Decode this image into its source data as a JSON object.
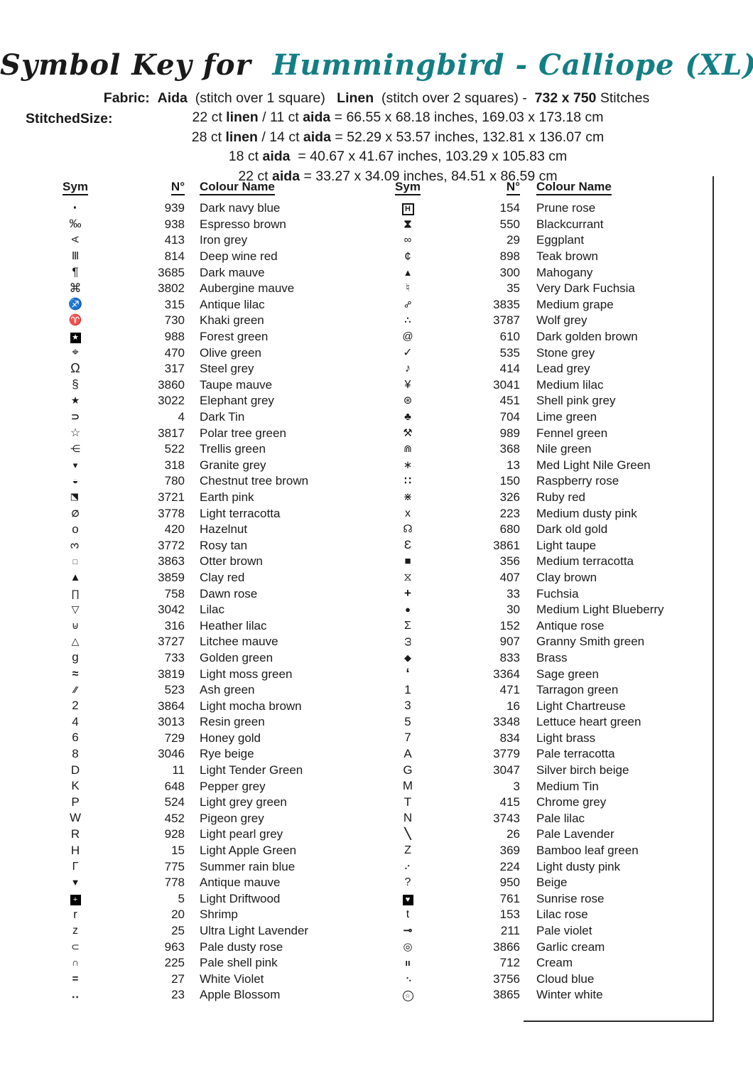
{
  "title": {
    "prefix": "Symbol Key for  ",
    "name": "Hummingbird - Calliope (XL)",
    "accent_color": "#137e83"
  },
  "fabric_line": [
    [
      "Fabric:",
      1
    ],
    [
      "  ",
      0
    ],
    [
      "Aida",
      1
    ],
    [
      "  (stitch over 1 square)   ",
      0
    ],
    [
      "Linen",
      1
    ],
    [
      "  (stitch over 2 squares) -  ",
      0
    ],
    [
      "732 x 750",
      1
    ],
    [
      " Stitches",
      0
    ]
  ],
  "stitched": {
    "label": "StitchedSize:",
    "lines": [
      [
        [
          "22 ct ",
          0
        ],
        [
          "linen",
          1
        ],
        [
          " / 11 ct ",
          0
        ],
        [
          "aida",
          1
        ],
        [
          " = 66.55 x 68.18 inches, 169.03 x 173.18 cm",
          0
        ]
      ],
      [
        [
          "28 ct ",
          0
        ],
        [
          "linen",
          1
        ],
        [
          " / 14 ct ",
          0
        ],
        [
          "aida",
          1
        ],
        [
          " = 52.29 x 53.57 inches, 132.81 x 136.07 cm",
          0
        ]
      ],
      [
        [
          "18 ct ",
          0
        ],
        [
          "aida",
          1
        ],
        [
          "  = 40.67 x 41.67 inches, 103.29 x 105.83 cm",
          0
        ]
      ],
      [
        [
          "22 ct ",
          0
        ],
        [
          "aida",
          1
        ],
        [
          " = 33.27 x 34.09 inches, 84.51 x 86.59 cm",
          0
        ]
      ]
    ]
  },
  "tables": [
    {
      "headers": {
        "sym": "Sym",
        "num": "N°",
        "name": "Colour Name"
      },
      "rows": [
        {
          "sym": "·",
          "b": 1,
          "size": 20,
          "num": "939",
          "name": "Dark navy blue"
        },
        {
          "sym": "‰",
          "size": 17,
          "num": "938",
          "name": "Espresso brown"
        },
        {
          "sym": "A",
          "rot": -90,
          "size": 14,
          "num": "413",
          "name": "Iron grey"
        },
        {
          "sym": "Ⅲ",
          "size": 15,
          "num": "814",
          "name": "Deep wine red"
        },
        {
          "sym": "¶",
          "size": 17,
          "num": "3685",
          "name": "Dark mauve"
        },
        {
          "sym": "⌘",
          "size": 17,
          "num": "3802",
          "name": "Aubergine mauve"
        },
        {
          "sym": "♐",
          "size": 16,
          "num": "315",
          "name": "Antique lilac"
        },
        {
          "sym": "♈",
          "size": 15,
          "num": "730",
          "name": "Khaki green"
        },
        {
          "sym": "★",
          "inv": 1,
          "num": "988",
          "name": "Forest green"
        },
        {
          "sym": "⌖",
          "size": 17,
          "num": "470",
          "name": "Olive green"
        },
        {
          "sym": "Ω",
          "size": 18,
          "num": "317",
          "name": "Steel grey"
        },
        {
          "sym": "§",
          "size": 17,
          "num": "3860",
          "name": "Taupe mauve"
        },
        {
          "sym": "★",
          "size": 14,
          "num": "3022",
          "name": "Elephant grey"
        },
        {
          "sym": "⊃",
          "size": 14,
          "b": 1,
          "num": "4",
          "name": "Dark Tin"
        },
        {
          "sym": "☆",
          "size": 16,
          "num": "3817",
          "name": "Polar tree green"
        },
        {
          "sym": "⋲",
          "size": 14,
          "num": "522",
          "name": "Trellis green"
        },
        {
          "sym": "▾",
          "size": 13,
          "num": "318",
          "name": "Granite grey"
        },
        {
          "sym": "◒",
          "size": 14,
          "num": "780",
          "name": "Chestnut tree brown"
        },
        {
          "sym": "◩",
          "rot": 90,
          "size": 13,
          "num": "3721",
          "name": "Earth pink"
        },
        {
          "sym": "∅",
          "size": 13,
          "b": 1,
          "num": "3778",
          "name": "Light terracotta"
        },
        {
          "sym": "o",
          "size": 17,
          "num": "420",
          "name": "Hazelnut"
        },
        {
          "sym": "3",
          "rot": -90,
          "size": 16,
          "num": "3772",
          "name": "Rosy tan"
        },
        {
          "sym": "□",
          "size": 11,
          "num": "3863",
          "name": "Otter brown"
        },
        {
          "sym": "▲",
          "size": 15,
          "num": "3859",
          "name": "Clay red"
        },
        {
          "sym": "∏",
          "size": 14,
          "num": "758",
          "name": "Dawn rose"
        },
        {
          "sym": "▽",
          "size": 14,
          "num": "3042",
          "name": "Lilac"
        },
        {
          "sym": "⊎",
          "size": 14,
          "num": "316",
          "name": "Heather lilac"
        },
        {
          "sym": "△",
          "size": 14,
          "num": "3727",
          "name": "Litchee mauve"
        },
        {
          "sym": "g",
          "size": 17,
          "num": "733",
          "name": "Golden green"
        },
        {
          "sym": "≈",
          "size": 16,
          "b": 1,
          "num": "3819",
          "name": "Light moss green"
        },
        {
          "sym": "∕∕",
          "size": 13,
          "b": 1,
          "num": "523",
          "name": "Ash green"
        },
        {
          "sym": "2",
          "size": 17,
          "num": "3864",
          "name": "Light mocha brown"
        },
        {
          "sym": "4",
          "size": 17,
          "num": "3013",
          "name": "Resin green"
        },
        {
          "sym": "6",
          "size": 17,
          "num": "729",
          "name": "Honey gold"
        },
        {
          "sym": "8",
          "size": 17,
          "num": "3046",
          "name": "Rye beige"
        },
        {
          "sym": "D",
          "size": 17,
          "num": "11",
          "name": "Light Tender Green"
        },
        {
          "sym": "K",
          "size": 17,
          "num": "648",
          "name": "Pepper grey"
        },
        {
          "sym": "P",
          "size": 17,
          "num": "524",
          "name": "Light grey green"
        },
        {
          "sym": "W",
          "size": 17,
          "num": "452",
          "name": "Pigeon grey"
        },
        {
          "sym": "R",
          "size": 17,
          "num": "928",
          "name": "Light pearl grey"
        },
        {
          "sym": "H",
          "size": 17,
          "num": "15",
          "name": "Light Apple Green"
        },
        {
          "sym": "Γ",
          "size": 16,
          "num": "775",
          "name": "Summer rain blue"
        },
        {
          "sym": "▼",
          "size": 13,
          "num": "778",
          "name": "Antique mauve"
        },
        {
          "sym": "+",
          "inv": 1,
          "num": "5",
          "name": "Light Driftwood"
        },
        {
          "sym": "r",
          "size": 17,
          "num": "20",
          "name": "Shrimp"
        },
        {
          "sym": "z",
          "size": 16,
          "num": "25",
          "name": "Ultra Light Lavender"
        },
        {
          "sym": "⊂",
          "size": 14,
          "num": "963",
          "name": "Pale dusty rose"
        },
        {
          "sym": "∩",
          "size": 14,
          "num": "225",
          "name": "Pale shell pink"
        },
        {
          "sym": "=",
          "size": 15,
          "b": 1,
          "num": "27",
          "name": "White Violet"
        },
        {
          "sym": "‥",
          "size": 16,
          "b": 1,
          "num": "23",
          "name": "Apple Blossom"
        }
      ]
    },
    {
      "headers": {
        "sym": "Sym",
        "num": "N°",
        "name": "Colour Name"
      },
      "rows": [
        {
          "sym": "H",
          "box": 1,
          "num": "154",
          "name": "Prune rose"
        },
        {
          "sym": "⧗",
          "size": 16,
          "b": 1,
          "num": "550",
          "name": "Blackcurrant"
        },
        {
          "sym": "∞",
          "size": 15,
          "num": "29",
          "name": "Eggplant"
        },
        {
          "sym": "¢",
          "size": 17,
          "num": "898",
          "name": "Teak brown"
        },
        {
          "sym": "▲",
          "size": 13,
          "num": "300",
          "name": "Mahogany"
        },
        {
          "sym": "♮",
          "size": 16,
          "num": "35",
          "name": "Very Dark Fuchsia"
        },
        {
          "sym": "⚯",
          "rot": -45,
          "size": 13,
          "num": "3835",
          "name": "Medium grape"
        },
        {
          "sym": "∴",
          "size": 14,
          "b": 1,
          "num": "3787",
          "name": "Wolf grey"
        },
        {
          "sym": "@",
          "size": 15,
          "num": "610",
          "name": "Dark golden brown"
        },
        {
          "sym": "✓",
          "size": 16,
          "num": "535",
          "name": "Stone grey"
        },
        {
          "sym": "♪",
          "size": 16,
          "num": "414",
          "name": "Lead grey"
        },
        {
          "sym": "¥",
          "size": 16,
          "num": "3041",
          "name": "Medium lilac"
        },
        {
          "sym": "⊛",
          "size": 15,
          "num": "451",
          "name": "Shell pink grey"
        },
        {
          "sym": "♣",
          "size": 15,
          "num": "704",
          "name": "Lime green"
        },
        {
          "sym": "⚒",
          "size": 15,
          "num": "989",
          "name": "Fennel green"
        },
        {
          "sym": "⋒",
          "size": 14,
          "num": "368",
          "name": "Nile green"
        },
        {
          "sym": "∗",
          "size": 15,
          "num": "13",
          "name": "Med Light Nile Green"
        },
        {
          "sym": "∷",
          "size": 15,
          "b": 1,
          "num": "150",
          "name": "Raspberry rose"
        },
        {
          "sym": "⋇",
          "size": 15,
          "num": "326",
          "name": "Ruby red"
        },
        {
          "sym": "x",
          "size": 16,
          "num": "223",
          "name": "Medium dusty pink"
        },
        {
          "sym": "☊",
          "size": 15,
          "num": "680",
          "name": "Dark old gold"
        },
        {
          "sym": "Ɛ",
          "size": 17,
          "num": "3861",
          "name": "Light taupe"
        },
        {
          "sym": "■",
          "size": 15,
          "num": "356",
          "name": "Medium terracotta"
        },
        {
          "sym": "⧖",
          "size": 16,
          "num": "407",
          "name": "Clay brown"
        },
        {
          "sym": "+",
          "size": 17,
          "b": 1,
          "num": "33",
          "name": "Fuchsia"
        },
        {
          "sym": "●",
          "size": 13,
          "num": "30",
          "name": "Medium Light Blueberry"
        },
        {
          "sym": "Σ",
          "size": 16,
          "num": "152",
          "name": "Antique rose"
        },
        {
          "sym": "ω",
          "rot": -90,
          "size": 16,
          "num": "907",
          "name": "Granny Smith green"
        },
        {
          "sym": "◆",
          "size": 13,
          "num": "833",
          "name": "Brass"
        },
        {
          "sym": "‘",
          "size": 19,
          "b": 1,
          "num": "3364",
          "name": "Sage green"
        },
        {
          "sym": "1",
          "size": 17,
          "num": "471",
          "name": "Tarragon green"
        },
        {
          "sym": "3",
          "size": 17,
          "num": "16",
          "name": "Light Chartreuse"
        },
        {
          "sym": "5",
          "size": 17,
          "num": "3348",
          "name": "Lettuce heart green"
        },
        {
          "sym": "7",
          "size": 17,
          "num": "834",
          "name": "Light brass"
        },
        {
          "sym": "A",
          "size": 17,
          "num": "3779",
          "name": "Pale terracotta"
        },
        {
          "sym": "G",
          "size": 17,
          "num": "3047",
          "name": "Silver birch beige"
        },
        {
          "sym": "M",
          "size": 17,
          "num": "3",
          "name": "Medium Tin"
        },
        {
          "sym": "T",
          "size": 17,
          "num": "415",
          "name": "Chrome grey"
        },
        {
          "sym": "N",
          "size": 17,
          "num": "3743",
          "name": "Pale lilac"
        },
        {
          "sym": "╲",
          "size": 15,
          "b": 1,
          "num": "26",
          "name": "Pale Lavender"
        },
        {
          "sym": "Z",
          "size": 16,
          "num": "369",
          "name": "Bamboo leaf green"
        },
        {
          "sym": ":",
          "rot": 45,
          "size": 14,
          "b": 1,
          "num": "224",
          "name": "Light dusty pink"
        },
        {
          "sym": "?",
          "size": 16,
          "num": "950",
          "name": "Beige"
        },
        {
          "sym": "♥",
          "inv": 1,
          "num": "761",
          "name": "Sunrise rose"
        },
        {
          "sym": "t",
          "size": 16,
          "num": "153",
          "name": "Lilac rose"
        },
        {
          "sym": "⊸",
          "size": 15,
          "b": 1,
          "num": "211",
          "name": "Pale violet"
        },
        {
          "sym": "◎",
          "size": 15,
          "num": "3866",
          "name": "Garlic cream"
        },
        {
          "sym": "ıı",
          "size": 13,
          "b": 1,
          "num": "712",
          "name": "Cream"
        },
        {
          "sym": ":",
          "rot": -45,
          "size": 14,
          "b": 1,
          "num": "3756",
          "name": "Cloud blue"
        },
        {
          "sym": "☆",
          "circ": 1,
          "num": "3865",
          "name": "Winter white"
        }
      ]
    }
  ]
}
